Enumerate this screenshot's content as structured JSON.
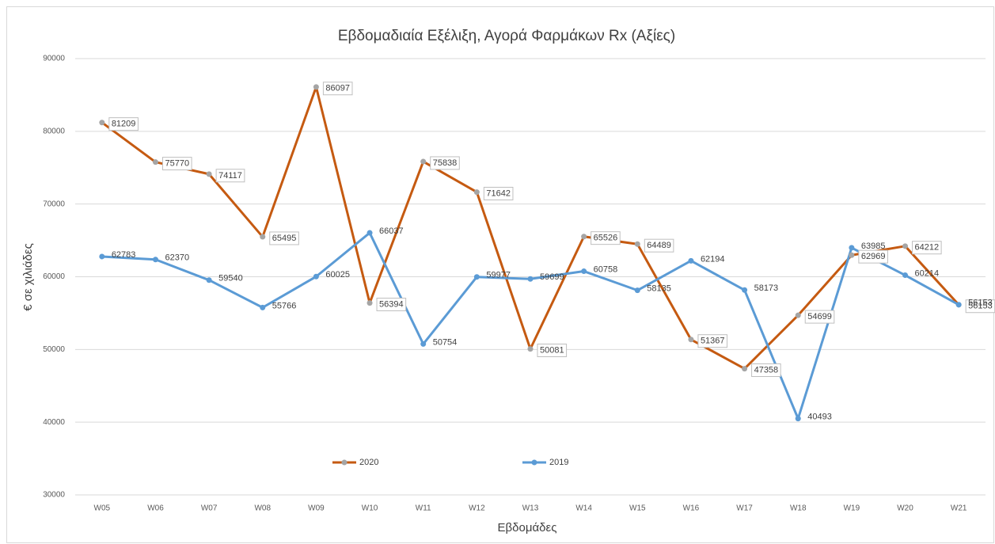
{
  "chart_data": {
    "type": "line",
    "title": "Εβδομαδιαία Εξέλιξη, Αγορά Φαρμάκων Rx (Αξίες)",
    "x_label": "Εβδομάδες",
    "y_label": "€ σε χιλιάδες",
    "categories": [
      "W05",
      "W06",
      "W07",
      "W08",
      "W09",
      "W10",
      "W11",
      "W12",
      "W13",
      "W14",
      "W15",
      "W16",
      "W17",
      "W18",
      "W19",
      "W20",
      "W21"
    ],
    "series": [
      {
        "name": "2020",
        "color": "#c55a11",
        "marker_color": "#a5a5a5",
        "boxed_labels": true,
        "values": [
          81209,
          75770,
          74117,
          65495,
          86097,
          56394,
          75838,
          71642,
          50081,
          65526,
          64489,
          51367,
          47358,
          54699,
          62969,
          64212,
          56153
        ]
      },
      {
        "name": "2019",
        "color": "#5b9bd5",
        "marker_color": "#5b9bd5",
        "boxed_labels": false,
        "values": [
          62783,
          62370,
          59540,
          55766,
          60025,
          66037,
          50754,
          59977,
          59699,
          60758,
          58135,
          62194,
          58173,
          40493,
          63985,
          60214,
          56153
        ]
      }
    ],
    "ylim": [
      30000,
      90000
    ],
    "yticks": [
      30000,
      40000,
      50000,
      60000,
      70000,
      80000,
      90000
    ],
    "grid": true,
    "legend": "lower center"
  }
}
